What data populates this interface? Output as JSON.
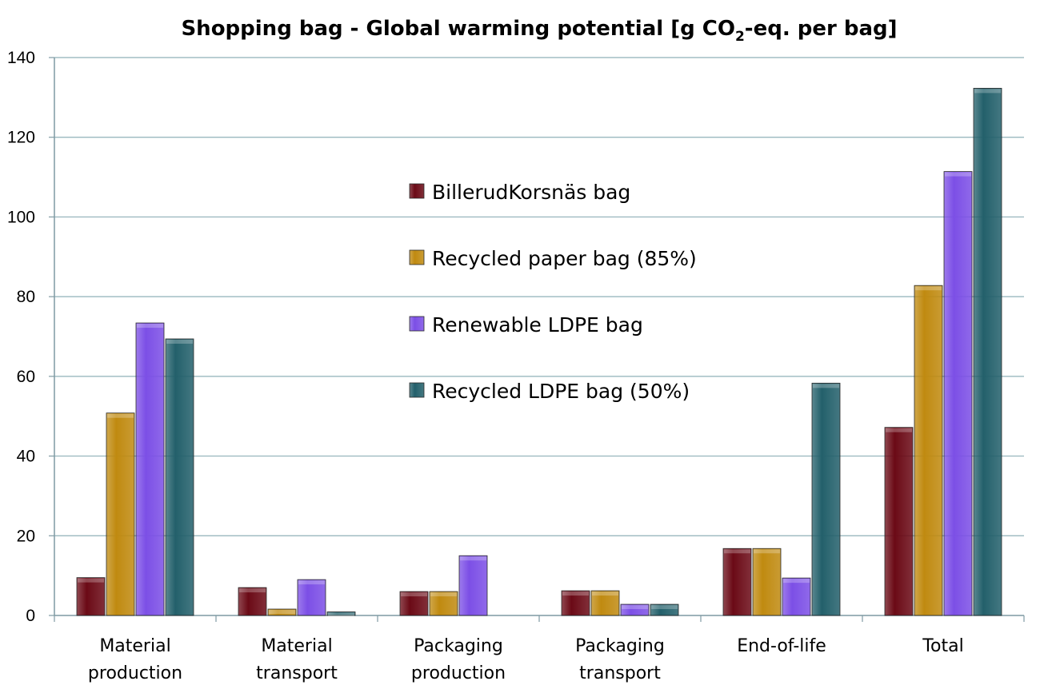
{
  "chart_data": {
    "type": "bar",
    "title": "Shopping bag - Global warming potential [g CO2-eq. per bag]",
    "title_parts": {
      "before": "Shopping bag - Global warming potential [g CO",
      "sub": "2",
      "after": "-eq. per bag]"
    },
    "xlabel": "",
    "ylabel": "",
    "ylim": [
      0,
      140
    ],
    "yticks": [
      "0",
      "20",
      "40",
      "60",
      "80",
      "100",
      "120",
      "140"
    ],
    "grid": true,
    "legend_position": "center",
    "categories": [
      [
        "Material",
        "production"
      ],
      [
        "Material",
        "transport"
      ],
      [
        "Packaging",
        "production"
      ],
      [
        "Packaging",
        "transport"
      ],
      [
        "End-of-life"
      ],
      [
        "Total"
      ]
    ],
    "series": [
      {
        "name": "BillerudKorsnäs bag",
        "color": "#6b0a16",
        "values": [
          9.5,
          7,
          6,
          6.2,
          16.8,
          47.2
        ]
      },
      {
        "name": "Recycled paper bag (85%)",
        "color": "#c08a10",
        "values": [
          50.8,
          1.6,
          6,
          6.2,
          16.8,
          82.8
        ]
      },
      {
        "name": "Renewable LDPE bag",
        "color": "#7c4fe6",
        "values": [
          73.4,
          9,
          15,
          2.8,
          9.4,
          111.4
        ]
      },
      {
        "name": "Recycled LDPE bag (50%)",
        "color": "#23606b",
        "values": [
          69.4,
          0.9,
          0,
          2.8,
          58.3,
          132.3
        ]
      }
    ]
  }
}
